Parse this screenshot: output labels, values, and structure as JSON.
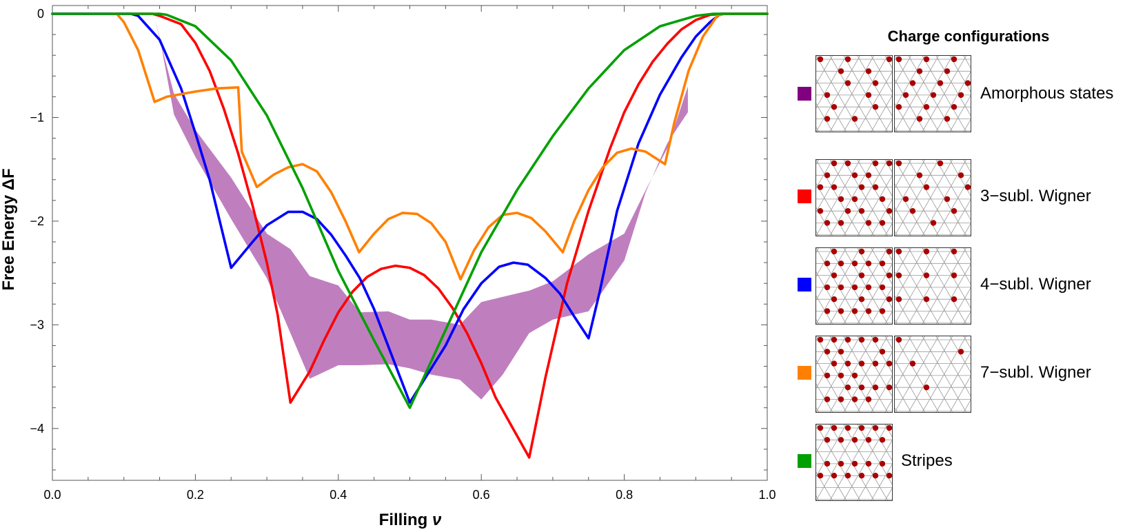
{
  "chart_data": {
    "type": "line",
    "xlabel": "Filling ",
    "xlabel_symbol": "ν",
    "ylabel": "Free Energy ΔF",
    "xlim": [
      0.0,
      1.0
    ],
    "ylim": [
      -4.5,
      0.08
    ],
    "xticks": [
      0.0,
      0.2,
      0.4,
      0.6,
      0.8,
      1.0
    ],
    "xtick_labels": [
      "0.0",
      "0.2",
      "0.4",
      "0.6",
      "0.8",
      "1.0"
    ],
    "yticks": [
      0,
      -1,
      -2,
      -3,
      -4
    ],
    "ytick_labels": [
      "0",
      "−1",
      "−2",
      "−3",
      "−4"
    ],
    "grid": false,
    "legend_title": "Charge configurations",
    "band": {
      "label": "Amorphous states",
      "color": "#bf7fbf",
      "swatch_color": "#800080",
      "upper": [
        [
          0.143,
          -0.05
        ],
        [
          0.17,
          -0.77
        ],
        [
          0.2,
          -1.12
        ],
        [
          0.25,
          -1.58
        ],
        [
          0.3,
          -2.12
        ],
        [
          0.333,
          -2.27
        ],
        [
          0.36,
          -2.53
        ],
        [
          0.4,
          -2.62
        ],
        [
          0.43,
          -2.88
        ],
        [
          0.47,
          -2.87
        ],
        [
          0.5,
          -2.95
        ],
        [
          0.53,
          -2.95
        ],
        [
          0.57,
          -3.0
        ],
        [
          0.6,
          -2.78
        ],
        [
          0.63,
          -2.73
        ],
        [
          0.667,
          -2.67
        ],
        [
          0.7,
          -2.58
        ],
        [
          0.75,
          -2.32
        ],
        [
          0.8,
          -2.12
        ],
        [
          0.83,
          -1.7
        ],
        [
          0.86,
          -1.3
        ],
        [
          0.889,
          -0.7
        ]
      ],
      "lower": [
        [
          0.889,
          -0.95
        ],
        [
          0.86,
          -1.25
        ],
        [
          0.83,
          -1.72
        ],
        [
          0.8,
          -2.38
        ],
        [
          0.75,
          -2.87
        ],
        [
          0.7,
          -2.95
        ],
        [
          0.667,
          -3.08
        ],
        [
          0.63,
          -3.48
        ],
        [
          0.6,
          -3.72
        ],
        [
          0.57,
          -3.53
        ],
        [
          0.53,
          -3.48
        ],
        [
          0.5,
          -3.42
        ],
        [
          0.47,
          -3.38
        ],
        [
          0.43,
          -3.39
        ],
        [
          0.4,
          -3.39
        ],
        [
          0.36,
          -3.52
        ],
        [
          0.333,
          -3.08
        ],
        [
          0.3,
          -2.55
        ],
        [
          0.25,
          -1.98
        ],
        [
          0.2,
          -1.38
        ],
        [
          0.17,
          -0.97
        ],
        [
          0.15,
          -0.22
        ]
      ]
    },
    "series": [
      {
        "name": "3−subl. Wigner",
        "color": "#ff0000",
        "points": [
          [
            0,
            0
          ],
          [
            0.14,
            0
          ],
          [
            0.15,
            -0.02
          ],
          [
            0.18,
            -0.1
          ],
          [
            0.2,
            -0.28
          ],
          [
            0.22,
            -0.55
          ],
          [
            0.24,
            -0.92
          ],
          [
            0.26,
            -1.35
          ],
          [
            0.28,
            -1.85
          ],
          [
            0.3,
            -2.4
          ],
          [
            0.315,
            -2.9
          ],
          [
            0.333,
            -3.75
          ],
          [
            0.36,
            -3.45
          ],
          [
            0.38,
            -3.15
          ],
          [
            0.4,
            -2.88
          ],
          [
            0.42,
            -2.68
          ],
          [
            0.44,
            -2.54
          ],
          [
            0.46,
            -2.46
          ],
          [
            0.48,
            -2.43
          ],
          [
            0.5,
            -2.45
          ],
          [
            0.52,
            -2.52
          ],
          [
            0.54,
            -2.65
          ],
          [
            0.56,
            -2.84
          ],
          [
            0.58,
            -3.08
          ],
          [
            0.6,
            -3.37
          ],
          [
            0.62,
            -3.7
          ],
          [
            0.667,
            -4.28
          ],
          [
            0.69,
            -3.5
          ],
          [
            0.72,
            -2.6
          ],
          [
            0.75,
            -1.9
          ],
          [
            0.78,
            -1.3
          ],
          [
            0.8,
            -0.95
          ],
          [
            0.82,
            -0.68
          ],
          [
            0.84,
            -0.46
          ],
          [
            0.86,
            -0.29
          ],
          [
            0.88,
            -0.15
          ],
          [
            0.9,
            -0.06
          ],
          [
            0.92,
            -0.01
          ],
          [
            0.94,
            0
          ],
          [
            1.0,
            0
          ]
        ]
      },
      {
        "name": "4−subl. Wigner",
        "color": "#0000ff",
        "points": [
          [
            0,
            0
          ],
          [
            0.11,
            0
          ],
          [
            0.12,
            -0.02
          ],
          [
            0.15,
            -0.25
          ],
          [
            0.18,
            -0.72
          ],
          [
            0.2,
            -1.15
          ],
          [
            0.22,
            -1.6
          ],
          [
            0.25,
            -2.45
          ],
          [
            0.28,
            -2.2
          ],
          [
            0.3,
            -2.04
          ],
          [
            0.33,
            -1.91
          ],
          [
            0.35,
            -1.91
          ],
          [
            0.37,
            -1.98
          ],
          [
            0.39,
            -2.13
          ],
          [
            0.41,
            -2.33
          ],
          [
            0.43,
            -2.55
          ],
          [
            0.45,
            -2.85
          ],
          [
            0.5,
            -3.75
          ],
          [
            0.55,
            -3.2
          ],
          [
            0.575,
            -2.85
          ],
          [
            0.6,
            -2.6
          ],
          [
            0.625,
            -2.44
          ],
          [
            0.645,
            -2.4
          ],
          [
            0.665,
            -2.42
          ],
          [
            0.69,
            -2.55
          ],
          [
            0.71,
            -2.7
          ],
          [
            0.73,
            -2.92
          ],
          [
            0.75,
            -3.13
          ],
          [
            0.765,
            -2.7
          ],
          [
            0.79,
            -1.9
          ],
          [
            0.82,
            -1.25
          ],
          [
            0.85,
            -0.78
          ],
          [
            0.88,
            -0.42
          ],
          [
            0.9,
            -0.22
          ],
          [
            0.92,
            -0.08
          ],
          [
            0.935,
            0
          ],
          [
            1.0,
            0
          ]
        ]
      },
      {
        "name": "7−subl. Wigner",
        "color": "#ff8000",
        "points": [
          [
            0.085,
            0
          ],
          [
            0.09,
            0
          ],
          [
            0.1,
            -0.08
          ],
          [
            0.12,
            -0.35
          ],
          [
            0.143,
            -0.85
          ],
          [
            0.16,
            -0.8
          ],
          [
            0.2,
            -0.75
          ],
          [
            0.23,
            -0.72
          ],
          [
            0.26,
            -0.71
          ],
          [
            0.265,
            -1.33
          ],
          [
            0.286,
            -1.67
          ],
          [
            0.31,
            -1.55
          ],
          [
            0.33,
            -1.48
          ],
          [
            0.35,
            -1.45
          ],
          [
            0.37,
            -1.52
          ],
          [
            0.39,
            -1.72
          ],
          [
            0.41,
            -2.0
          ],
          [
            0.429,
            -2.3
          ],
          [
            0.45,
            -2.12
          ],
          [
            0.47,
            -1.98
          ],
          [
            0.49,
            -1.92
          ],
          [
            0.51,
            -1.93
          ],
          [
            0.53,
            -2.02
          ],
          [
            0.55,
            -2.2
          ],
          [
            0.571,
            -2.56
          ],
          [
            0.59,
            -2.28
          ],
          [
            0.61,
            -2.06
          ],
          [
            0.63,
            -1.94
          ],
          [
            0.65,
            -1.92
          ],
          [
            0.67,
            -1.97
          ],
          [
            0.69,
            -2.1
          ],
          [
            0.714,
            -2.3
          ],
          [
            0.73,
            -2.0
          ],
          [
            0.75,
            -1.7
          ],
          [
            0.77,
            -1.48
          ],
          [
            0.79,
            -1.34
          ],
          [
            0.81,
            -1.3
          ],
          [
            0.83,
            -1.33
          ],
          [
            0.857,
            -1.45
          ],
          [
            0.87,
            -1.05
          ],
          [
            0.89,
            -0.55
          ],
          [
            0.91,
            -0.22
          ],
          [
            0.93,
            -0.02
          ],
          [
            0.94,
            0
          ],
          [
            1.0,
            0
          ]
        ]
      },
      {
        "name": "Stripes",
        "color": "#00a000",
        "points": [
          [
            0,
            0
          ],
          [
            0.15,
            0
          ],
          [
            0.16,
            -0.01
          ],
          [
            0.2,
            -0.12
          ],
          [
            0.25,
            -0.45
          ],
          [
            0.3,
            -0.98
          ],
          [
            0.35,
            -1.68
          ],
          [
            0.4,
            -2.48
          ],
          [
            0.45,
            -3.15
          ],
          [
            0.5,
            -3.8
          ],
          [
            0.55,
            -3.05
          ],
          [
            0.6,
            -2.3
          ],
          [
            0.65,
            -1.7
          ],
          [
            0.7,
            -1.18
          ],
          [
            0.75,
            -0.72
          ],
          [
            0.8,
            -0.35
          ],
          [
            0.85,
            -0.12
          ],
          [
            0.9,
            -0.02
          ],
          [
            0.925,
            0
          ],
          [
            1.0,
            0
          ]
        ]
      }
    ],
    "legend": [
      {
        "label": "Amorphous states",
        "color": "#800080"
      },
      {
        "label": "3−subl. Wigner",
        "color": "#ff0000"
      },
      {
        "label": "4−subl. Wigner",
        "color": "#0000ff"
      },
      {
        "label": "7−subl. Wigner",
        "color": "#ff8000"
      },
      {
        "label": "Stripes",
        "color": "#00a000"
      }
    ],
    "config_colors": {
      "site": "#aa0000",
      "lattice": "#999999"
    }
  }
}
